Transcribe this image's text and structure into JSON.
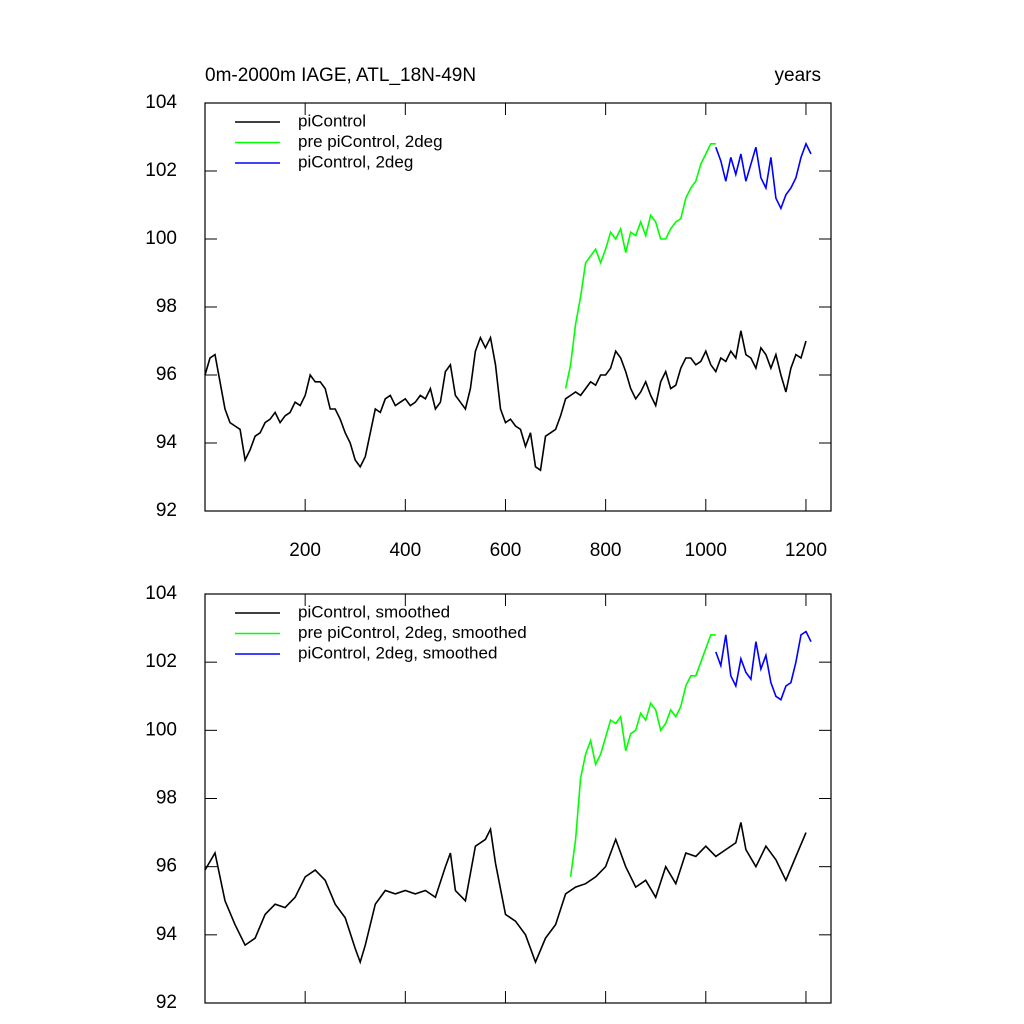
{
  "chart_data": [
    {
      "type": "line",
      "title": "0m-2000m IAGE, ATL_18N-49N",
      "subtitle": "years",
      "xlim": [
        0,
        1250
      ],
      "ylim": [
        92,
        104
      ],
      "xticks": [
        200,
        400,
        600,
        800,
        1000,
        1200
      ],
      "yticks": [
        92,
        94,
        96,
        98,
        100,
        102,
        104
      ],
      "xtick_labels": true,
      "series": [
        {
          "name": "piControl",
          "color": "#000000",
          "x": [
            0,
            10,
            20,
            30,
            40,
            50,
            60,
            70,
            80,
            90,
            100,
            110,
            120,
            130,
            140,
            150,
            160,
            170,
            180,
            190,
            200,
            210,
            220,
            230,
            240,
            250,
            260,
            270,
            280,
            290,
            300,
            310,
            320,
            330,
            340,
            350,
            360,
            370,
            380,
            390,
            400,
            410,
            420,
            430,
            440,
            450,
            460,
            470,
            480,
            490,
            500,
            510,
            520,
            530,
            540,
            550,
            560,
            570,
            580,
            590,
            600,
            610,
            620,
            630,
            640,
            650,
            660,
            670,
            680,
            690,
            700,
            710,
            720,
            730,
            740,
            750,
            760,
            770,
            780,
            790,
            800,
            810,
            820,
            830,
            840,
            850,
            860,
            870,
            880,
            890,
            900,
            910,
            920,
            930,
            940,
            950,
            960,
            970,
            980,
            990,
            1000,
            1010,
            1020,
            1030,
            1040,
            1050,
            1060,
            1070,
            1080,
            1090,
            1100,
            1110,
            1120,
            1130,
            1140,
            1150,
            1160,
            1170,
            1180,
            1190,
            1200
          ],
          "values": [
            96.0,
            96.5,
            96.6,
            95.8,
            95.0,
            94.6,
            94.5,
            94.4,
            93.5,
            93.8,
            94.2,
            94.3,
            94.6,
            94.7,
            94.9,
            94.6,
            94.8,
            94.9,
            95.2,
            95.1,
            95.4,
            96.0,
            95.8,
            95.8,
            95.6,
            95.0,
            95.0,
            94.7,
            94.3,
            94.0,
            93.5,
            93.3,
            93.6,
            94.3,
            95.0,
            94.9,
            95.3,
            95.4,
            95.1,
            95.2,
            95.3,
            95.1,
            95.2,
            95.4,
            95.3,
            95.6,
            95.0,
            95.2,
            96.1,
            96.3,
            95.4,
            95.2,
            95.0,
            95.6,
            96.7,
            97.1,
            96.8,
            97.1,
            96.3,
            95.0,
            94.6,
            94.7,
            94.5,
            94.4,
            93.9,
            94.3,
            93.3,
            93.2,
            94.2,
            94.3,
            94.4,
            94.8,
            95.3,
            95.4,
            95.5,
            95.4,
            95.6,
            95.8,
            95.7,
            96.0,
            96.0,
            96.2,
            96.7,
            96.5,
            96.1,
            95.6,
            95.3,
            95.5,
            95.8,
            95.4,
            95.1,
            95.8,
            96.1,
            95.6,
            95.7,
            96.2,
            96.5,
            96.5,
            96.3,
            96.4,
            96.7,
            96.3,
            96.1,
            96.5,
            96.4,
            96.7,
            96.5,
            97.3,
            96.6,
            96.5,
            96.2,
            96.8,
            96.6,
            96.2,
            96.6,
            96.0,
            95.5,
            96.2,
            96.6,
            96.5,
            97.0
          ]
        },
        {
          "name": "pre piControl, 2deg",
          "color": "#00ff00",
          "x": [
            720,
            730,
            740,
            750,
            760,
            770,
            780,
            790,
            800,
            810,
            820,
            830,
            840,
            850,
            860,
            870,
            880,
            890,
            900,
            910,
            920,
            930,
            940,
            950,
            960,
            970,
            980,
            990,
            1000,
            1010,
            1020
          ],
          "values": [
            95.6,
            96.3,
            97.5,
            98.3,
            99.3,
            99.5,
            99.7,
            99.3,
            99.7,
            100.2,
            100.0,
            100.3,
            99.6,
            100.2,
            100.1,
            100.5,
            100.1,
            100.7,
            100.5,
            100.0,
            100.0,
            100.3,
            100.5,
            100.6,
            101.2,
            101.5,
            101.7,
            102.2,
            102.5,
            102.8,
            102.8
          ]
        },
        {
          "name": "piControl, 2deg",
          "color": "#0000ff",
          "x": [
            1020,
            1030,
            1040,
            1050,
            1060,
            1070,
            1080,
            1090,
            1100,
            1110,
            1120,
            1130,
            1140,
            1150,
            1160,
            1170,
            1180,
            1190,
            1200,
            1210
          ],
          "values": [
            102.7,
            102.3,
            101.7,
            102.4,
            101.9,
            102.5,
            101.7,
            102.2,
            102.7,
            101.8,
            101.5,
            102.4,
            101.2,
            100.9,
            101.3,
            101.5,
            101.8,
            102.4,
            102.8,
            102.5
          ]
        }
      ]
    },
    {
      "type": "line",
      "xlim": [
        0,
        1250
      ],
      "ylim": [
        92,
        104
      ],
      "xticks": [
        200,
        400,
        600,
        800,
        1000,
        1200
      ],
      "yticks": [
        92,
        94,
        96,
        98,
        100,
        102,
        104
      ],
      "xtick_labels": false,
      "series": [
        {
          "name": "piControl, smoothed",
          "color": "#000000",
          "x": [
            0,
            20,
            40,
            60,
            80,
            100,
            120,
            140,
            160,
            180,
            200,
            220,
            240,
            260,
            280,
            300,
            310,
            320,
            340,
            360,
            380,
            400,
            420,
            440,
            460,
            480,
            490,
            500,
            520,
            540,
            560,
            570,
            580,
            600,
            620,
            640,
            660,
            680,
            700,
            720,
            740,
            760,
            780,
            800,
            820,
            840,
            860,
            880,
            900,
            920,
            940,
            960,
            980,
            1000,
            1020,
            1040,
            1060,
            1070,
            1080,
            1100,
            1120,
            1140,
            1160,
            1180,
            1200
          ],
          "values": [
            95.9,
            96.4,
            95.0,
            94.3,
            93.7,
            93.9,
            94.6,
            94.9,
            94.8,
            95.1,
            95.7,
            95.9,
            95.6,
            94.9,
            94.5,
            93.6,
            93.2,
            93.7,
            94.9,
            95.3,
            95.2,
            95.3,
            95.2,
            95.3,
            95.1,
            96.0,
            96.4,
            95.3,
            95.0,
            96.6,
            96.8,
            97.1,
            96.1,
            94.6,
            94.4,
            94.0,
            93.2,
            93.9,
            94.3,
            95.2,
            95.4,
            95.5,
            95.7,
            96.0,
            96.8,
            96.0,
            95.4,
            95.6,
            95.1,
            96.0,
            95.5,
            96.4,
            96.3,
            96.6,
            96.3,
            96.5,
            96.7,
            97.3,
            96.5,
            96.0,
            96.6,
            96.2,
            95.6,
            96.3,
            97.0
          ]
        },
        {
          "name": "pre piControl, 2deg, smoothed",
          "color": "#00ff00",
          "x": [
            730,
            740,
            750,
            760,
            770,
            780,
            790,
            800,
            810,
            820,
            830,
            840,
            850,
            860,
            870,
            880,
            890,
            900,
            910,
            920,
            930,
            940,
            950,
            960,
            970,
            980,
            990,
            1000,
            1010,
            1020
          ],
          "values": [
            95.7,
            96.8,
            98.6,
            99.3,
            99.7,
            99.0,
            99.3,
            99.8,
            100.3,
            100.2,
            100.4,
            99.4,
            99.9,
            100.0,
            100.5,
            100.3,
            100.8,
            100.6,
            100.0,
            100.2,
            100.6,
            100.4,
            100.7,
            101.3,
            101.6,
            101.6,
            102.0,
            102.4,
            102.8,
            102.8
          ]
        },
        {
          "name": "piControl, 2deg, smoothed",
          "color": "#0000ff",
          "x": [
            1020,
            1030,
            1040,
            1050,
            1060,
            1070,
            1080,
            1090,
            1100,
            1110,
            1120,
            1130,
            1140,
            1150,
            1160,
            1170,
            1180,
            1190,
            1200,
            1210
          ],
          "values": [
            102.3,
            101.9,
            102.8,
            101.6,
            101.3,
            102.1,
            101.7,
            101.5,
            102.6,
            101.8,
            102.2,
            101.4,
            101.0,
            100.9,
            101.3,
            101.4,
            102.0,
            102.8,
            102.9,
            102.6
          ]
        }
      ]
    }
  ]
}
